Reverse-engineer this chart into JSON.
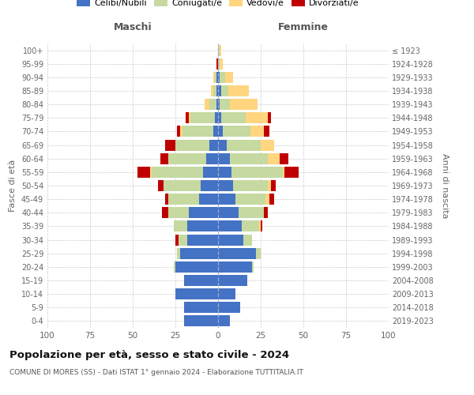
{
  "age_groups": [
    "100+",
    "95-99",
    "90-94",
    "85-89",
    "80-84",
    "75-79",
    "70-74",
    "65-69",
    "60-64",
    "55-59",
    "50-54",
    "45-49",
    "40-44",
    "35-39",
    "30-34",
    "25-29",
    "20-24",
    "15-19",
    "10-14",
    "5-9",
    "0-4"
  ],
  "birth_years": [
    "≤ 1923",
    "1924-1928",
    "1929-1933",
    "1934-1938",
    "1939-1943",
    "1944-1948",
    "1949-1953",
    "1954-1958",
    "1959-1963",
    "1964-1968",
    "1969-1973",
    "1974-1978",
    "1979-1983",
    "1984-1988",
    "1989-1993",
    "1994-1998",
    "1999-2003",
    "2004-2008",
    "2009-2013",
    "2014-2018",
    "2019-2023"
  ],
  "colors": {
    "celibi": "#4472C4",
    "coniugati": "#c5d9a0",
    "vedovi": "#ffd580",
    "divorziati": "#c00000"
  },
  "males": {
    "celibi": [
      0,
      0,
      1,
      1,
      1,
      2,
      3,
      5,
      7,
      9,
      10,
      11,
      17,
      18,
      18,
      22,
      25,
      20,
      25,
      20,
      20
    ],
    "coniugati": [
      0,
      0,
      1,
      2,
      4,
      14,
      18,
      20,
      22,
      30,
      22,
      18,
      12,
      8,
      5,
      2,
      1,
      0,
      0,
      0,
      0
    ],
    "vedovi": [
      0,
      0,
      1,
      1,
      3,
      1,
      1,
      0,
      0,
      1,
      0,
      0,
      0,
      0,
      0,
      0,
      0,
      0,
      0,
      0,
      0
    ],
    "divorziati": [
      0,
      1,
      0,
      0,
      0,
      2,
      2,
      6,
      5,
      7,
      3,
      2,
      4,
      0,
      2,
      0,
      0,
      0,
      0,
      0,
      0
    ]
  },
  "females": {
    "celibi": [
      0,
      0,
      1,
      2,
      1,
      2,
      3,
      5,
      7,
      8,
      9,
      10,
      12,
      14,
      15,
      22,
      20,
      17,
      10,
      13,
      7
    ],
    "coniugati": [
      1,
      1,
      3,
      4,
      6,
      14,
      16,
      20,
      22,
      30,
      20,
      18,
      15,
      10,
      5,
      3,
      1,
      0,
      0,
      0,
      0
    ],
    "vedovi": [
      1,
      2,
      5,
      12,
      16,
      13,
      8,
      8,
      7,
      1,
      2,
      2,
      0,
      1,
      0,
      0,
      0,
      0,
      0,
      0,
      0
    ],
    "divorziati": [
      0,
      0,
      0,
      0,
      0,
      2,
      3,
      0,
      5,
      8,
      3,
      3,
      2,
      1,
      0,
      0,
      0,
      0,
      0,
      0,
      0
    ]
  },
  "xlim": 100,
  "title": "Popolazione per età, sesso e stato civile - 2024",
  "subtitle": "COMUNE DI MORES (SS) - Dati ISTAT 1° gennaio 2024 - Elaborazione TUTTITALIA.IT",
  "ylabel_left": "Fasce di età",
  "ylabel_right": "Anni di nascita",
  "label_maschi": "Maschi",
  "label_femmine": "Femmine",
  "legend_labels": [
    "Celibi/Nubili",
    "Coniugati/e",
    "Vedovi/e",
    "Divorziati/e"
  ],
  "bg_color": "#ffffff",
  "grid_color": "#cccccc"
}
